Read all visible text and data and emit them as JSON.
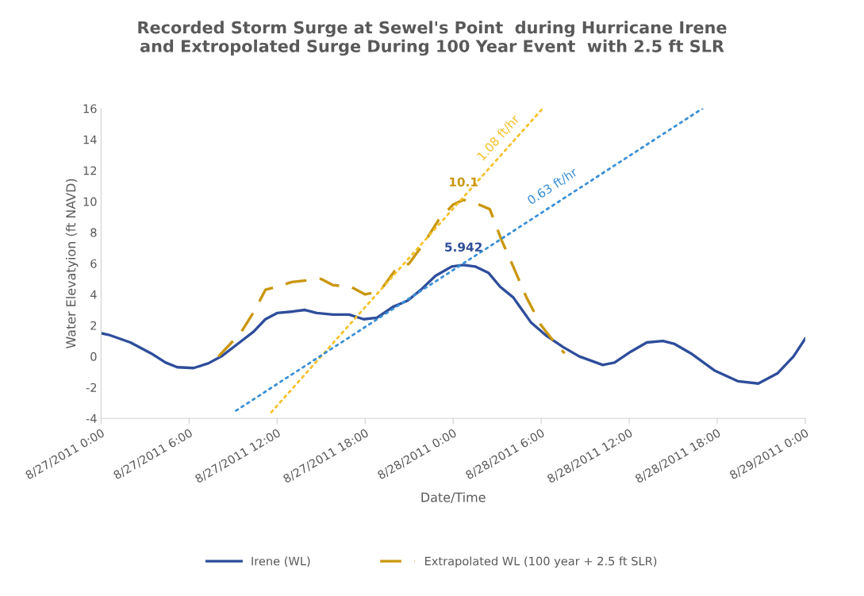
{
  "chart_data": {
    "type": "line",
    "title": "Recorded Storm Surge at Sewel's Point  during Hurricane Irene\nand Extropolated Surge During 100 Year Event  with 2.5 ft SLR",
    "xlabel": "Date/Time",
    "ylabel": "Water Elevatyion (ft NAVD)",
    "xlim": [
      "2011-08-27T00:00",
      "2011-08-29T00:00"
    ],
    "ylim": [
      -4,
      16
    ],
    "xticks": [
      {
        "value": "2011-08-27T00:00",
        "label": "8/27/2011 0:00"
      },
      {
        "value": "2011-08-27T06:00",
        "label": "8/27/2011 6:00"
      },
      {
        "value": "2011-08-27T12:00",
        "label": "8/27/2011 12:00"
      },
      {
        "value": "2011-08-27T18:00",
        "label": "8/27/2011 18:00"
      },
      {
        "value": "2011-08-28T00:00",
        "label": "8/28/2011 0:00"
      },
      {
        "value": "2011-08-28T06:00",
        "label": "8/28/2011 6:00"
      },
      {
        "value": "2011-08-28T12:00",
        "label": "8/28/2011 12:00"
      },
      {
        "value": "2011-08-28T18:00",
        "label": "8/28/2011 18:00"
      },
      {
        "value": "2011-08-29T00:00",
        "label": "8/29/2011 0:00"
      }
    ],
    "yticks": [
      -4,
      -2,
      0,
      2,
      4,
      6,
      8,
      10,
      12,
      14,
      16
    ],
    "grid": false,
    "legend": "bottom",
    "marker": "none",
    "series": [
      {
        "name": "Irene (WL)",
        "color": "#2e4d9b",
        "line_style": "solid",
        "x": [
          "2011-08-27T00:00",
          "2011-08-27T00:30",
          "2011-08-27T02:00",
          "2011-08-27T03:24",
          "2011-08-27T04:24",
          "2011-08-27T05:12",
          "2011-08-27T06:18",
          "2011-08-27T07:18",
          "2011-08-27T08:12",
          "2011-08-27T09:18",
          "2011-08-27T10:24",
          "2011-08-27T11:12",
          "2011-08-27T12:00",
          "2011-08-27T13:06",
          "2011-08-27T13:54",
          "2011-08-27T14:42",
          "2011-08-27T15:48",
          "2011-08-27T16:54",
          "2011-08-27T17:54",
          "2011-08-27T18:48",
          "2011-08-27T19:54",
          "2011-08-27T20:54",
          "2011-08-27T21:48",
          "2011-08-27T22:48",
          "2011-08-27T23:54",
          "2011-08-28T00:42",
          "2011-08-28T01:30",
          "2011-08-28T02:24",
          "2011-08-28T03:12",
          "2011-08-28T04:06",
          "2011-08-28T04:24",
          "2011-08-28T05:18",
          "2011-08-28T06:24",
          "2011-08-28T07:30",
          "2011-08-28T08:36",
          "2011-08-28T10:12",
          "2011-08-28T11:00",
          "2011-08-28T12:06",
          "2011-08-28T13:12",
          "2011-08-28T14:18",
          "2011-08-28T15:06",
          "2011-08-28T16:12",
          "2011-08-28T17:48",
          "2011-08-28T19:24",
          "2011-08-28T20:48",
          "2011-08-28T22:06",
          "2011-08-28T23:12",
          "2011-08-29T00:00"
        ],
        "values": [
          1.5,
          1.4,
          0.9,
          0.2,
          -0.4,
          -0.7,
          -0.75,
          -0.45,
          0.0,
          0.8,
          1.6,
          2.4,
          2.8,
          2.9,
          3.0,
          2.8,
          2.7,
          2.7,
          2.4,
          2.5,
          3.2,
          3.6,
          4.3,
          5.2,
          5.8,
          5.9,
          5.8,
          5.4,
          4.5,
          3.8,
          3.4,
          2.2,
          1.3,
          0.6,
          0.0,
          -0.55,
          -0.4,
          0.3,
          0.9,
          1.0,
          0.8,
          0.2,
          -0.9,
          -1.6,
          -1.75,
          -1.1,
          0.0,
          1.15
        ]
      },
      {
        "name": "Extrapolated WL (100 year + 2.5 ft SLR)",
        "color": "#c9960c",
        "line_style": "dashed",
        "x": [
          "2011-08-27T08:00",
          "2011-08-27T09:30",
          "2011-08-27T10:30",
          "2011-08-27T11:12",
          "2011-08-27T12:00",
          "2011-08-27T13:00",
          "2011-08-27T14:00",
          "2011-08-27T15:00",
          "2011-08-27T15:48",
          "2011-08-27T17:00",
          "2011-08-27T18:00",
          "2011-08-27T19:00",
          "2011-08-27T20:00",
          "2011-08-27T21:00",
          "2011-08-27T22:00",
          "2011-08-27T23:00",
          "2011-08-28T00:00",
          "2011-08-28T00:42",
          "2011-08-28T01:30",
          "2011-08-28T02:30",
          "2011-08-28T03:18",
          "2011-08-28T04:00",
          "2011-08-28T05:00",
          "2011-08-28T06:00",
          "2011-08-28T07:00",
          "2011-08-28T07:36"
        ],
        "values": [
          0.0,
          1.5,
          3.0,
          4.3,
          4.5,
          4.8,
          4.9,
          5.0,
          4.6,
          4.5,
          4.0,
          4.2,
          5.5,
          6.0,
          7.3,
          8.8,
          9.8,
          10.1,
          9.9,
          9.5,
          7.5,
          6.0,
          3.8,
          2.0,
          0.8,
          0.2
        ]
      },
      {
        "color": "#f5c02a",
        "line_style": "dotted",
        "x": [
          "2011-08-27T11:36",
          "2011-08-28T06:06"
        ],
        "values": [
          -3.6,
          16
        ]
      },
      {
        "color": "#3a8fd6",
        "line_style": "dotted",
        "x": [
          "2011-08-27T09:12",
          "2011-08-28T17:00"
        ],
        "values": [
          -3.5,
          16
        ]
      }
    ],
    "annotations": [
      {
        "text": "10.1",
        "x": "2011-08-28T00:42",
        "y": 10.1
      },
      {
        "text": "5.942",
        "x": "2011-08-28T00:42",
        "y": 5.9
      },
      {
        "text": "1.08 ft/hr",
        "x": "2011-08-28T03:24",
        "y": 13.1
      },
      {
        "text": "0.63 ft/hr",
        "x": "2011-08-28T07:00",
        "y": 9.9
      }
    ]
  }
}
